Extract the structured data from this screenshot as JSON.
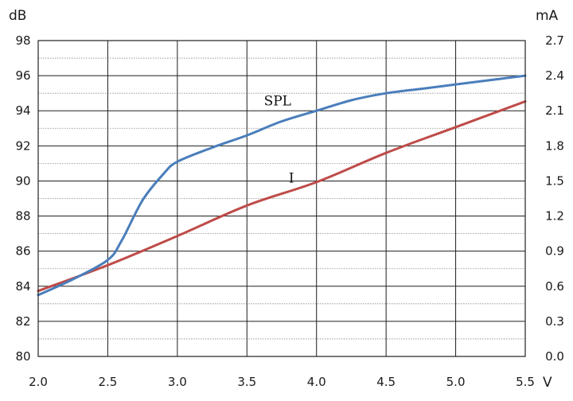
{
  "chart_data": {
    "type": "line",
    "x_unit": "V",
    "y_left_unit": "dB",
    "y_right_unit": "mA",
    "xlim": [
      2.0,
      5.5
    ],
    "ylim_left": [
      80,
      98
    ],
    "ylim_right": [
      0.0,
      2.7
    ],
    "grid": true,
    "x_ticks": [
      "2.0",
      "2.5",
      "3.0",
      "3.5",
      "4.0",
      "4.5",
      "5.0",
      "5.5"
    ],
    "y_left_ticks": [
      "80",
      "82",
      "84",
      "86",
      "88",
      "90",
      "92",
      "94",
      "96",
      "98"
    ],
    "y_right_ticks": [
      "0.0",
      "0.3",
      "0.6",
      "0.9",
      "1.2",
      "1.5",
      "1.8",
      "2.1",
      "2.4",
      "2.7"
    ],
    "series": [
      {
        "name": "SPL",
        "axis": "left",
        "color": "#4a7ebb",
        "x": [
          2.0,
          2.25,
          2.5,
          2.6,
          2.75,
          2.9,
          3.0,
          3.25,
          3.5,
          3.75,
          4.0,
          4.25,
          4.5,
          4.75,
          5.0,
          5.25,
          5.5
        ],
        "y": [
          83.5,
          84.4,
          85.5,
          86.6,
          88.9,
          90.4,
          91.1,
          91.9,
          92.6,
          93.4,
          94.0,
          94.6,
          95.0,
          95.25,
          95.5,
          95.75,
          96.0
        ]
      },
      {
        "name": "I",
        "axis": "right",
        "color": "#be4b48",
        "x": [
          2.0,
          2.5,
          3.0,
          3.5,
          4.0,
          4.5,
          5.0,
          5.5
        ],
        "y": [
          0.56,
          0.78,
          1.03,
          1.29,
          1.49,
          1.74,
          1.96,
          2.18
        ]
      }
    ],
    "annotations": [
      {
        "text": "SPL",
        "x": 3.72,
        "y_left": 94.3
      },
      {
        "text": "I",
        "x": 3.82,
        "y_left": 89.9
      }
    ]
  }
}
